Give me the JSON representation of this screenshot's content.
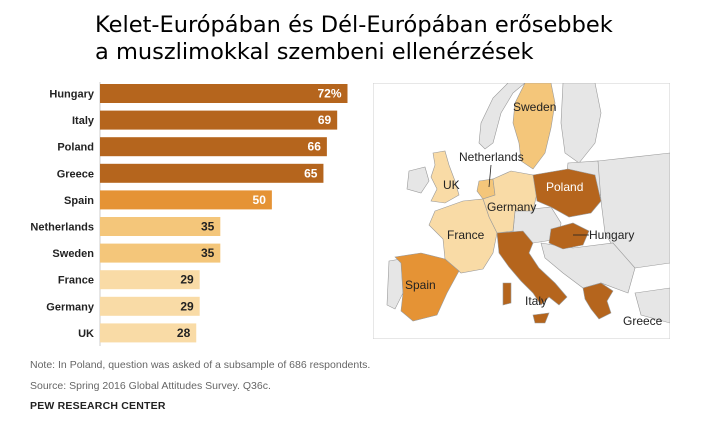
{
  "title_lines": [
    "Kelet-Európában és Dél-Európában erősebbek",
    "a muszlimokkal szembeni ellenérzések"
  ],
  "chart_data": {
    "type": "bar",
    "orientation": "horizontal",
    "categories": [
      "Hungary",
      "Italy",
      "Poland",
      "Greece",
      "Spain",
      "Netherlands",
      "Sweden",
      "France",
      "Germany",
      "UK"
    ],
    "values": [
      72,
      69,
      66,
      65,
      50,
      35,
      35,
      29,
      29,
      28
    ],
    "value_labels": [
      "72%",
      "69",
      "66",
      "65",
      "50",
      "35",
      "35",
      "29",
      "29",
      "28"
    ],
    "xlim": [
      0,
      80
    ],
    "colors": [
      "#b5651d",
      "#b5651d",
      "#b5651d",
      "#b5651d",
      "#e59335",
      "#f4c67a",
      "#f4c67a",
      "#f9dba6",
      "#f9dba6",
      "#f9dba6"
    ],
    "label_colors": [
      "#ffffff",
      "#ffffff",
      "#ffffff",
      "#ffffff",
      "#ffffff",
      "#222222",
      "#222222",
      "#222222",
      "#222222",
      "#222222"
    ],
    "grid": false,
    "legend": "none"
  },
  "map": {
    "labels": [
      "Sweden",
      "Netherlands",
      "UK",
      "Poland",
      "Germany",
      "France",
      "Hungary",
      "Spain",
      "Italy",
      "Greece"
    ],
    "colors": {
      "sea": "#ffffff",
      "other_land": "#e6e6e6",
      "border": "#9a9a9a",
      "dark": "#b5651d",
      "medium": "#e59335",
      "light": "#f4c67a",
      "lighter": "#f9dba6"
    }
  },
  "notes": {
    "note": "Note: In Poland, question was asked of a subsample of 686 respondents.",
    "source": "Source: Spring 2016 Global Attitudes Survey. Q36c.",
    "brand": "PEW RESEARCH CENTER"
  }
}
